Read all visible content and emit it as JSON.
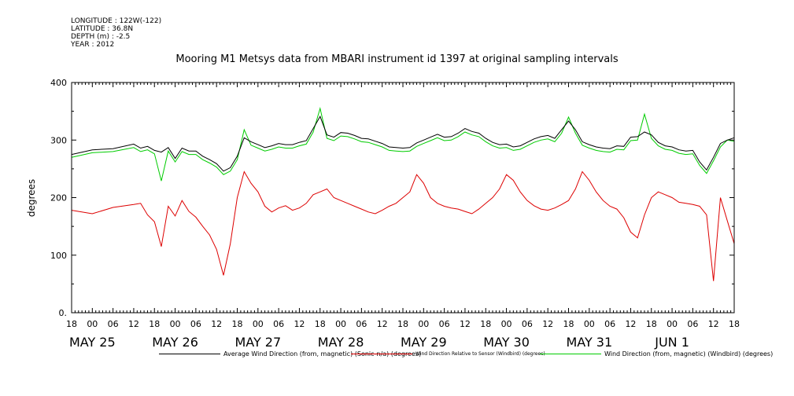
{
  "meta": {
    "longitude": "LONGITUDE : 122W(-122)",
    "latitude": "LATITUDE : 36.8N",
    "depth": "DEPTH (m) : -2.5",
    "year": "YEAR : 2012"
  },
  "chart_data": {
    "type": "line",
    "title": "Mooring M1 Metsys data from MBARI instrument id 1397 at original sampling intervals",
    "ylabel": "degrees",
    "xlabel": "",
    "xlim": [
      "2012-05-24 18:00",
      "2012-06-01 18:00"
    ],
    "ylim": [
      0,
      400
    ],
    "yticks": [
      "0.",
      "100",
      "200",
      "300",
      "400"
    ],
    "xtick_labels": [
      "18",
      "00",
      "06",
      "12",
      "18",
      "00",
      "06",
      "12",
      "18",
      "00",
      "06",
      "12",
      "18",
      "00",
      "06",
      "12",
      "18",
      "00",
      "06",
      "12",
      "18",
      "00",
      "06",
      "12",
      "18",
      "00",
      "06",
      "12",
      "18",
      "00",
      "06",
      "12",
      "18"
    ],
    "date_labels": [
      "MAY 25",
      "MAY 26",
      "MAY 27",
      "MAY 28",
      "MAY 29",
      "MAY 30",
      "MAY 31",
      "JUN  1"
    ],
    "grid": false,
    "legend_position": "bottom",
    "series": [
      {
        "name": "Average Wind Direction (from, magnetic) (Sonic-n/a) (degrees)",
        "color": "#000000",
        "x_hours": [
          0,
          6,
          12,
          18,
          20,
          22,
          24,
          26,
          28,
          30,
          32,
          34,
          36,
          38,
          40,
          42,
          44,
          46,
          48,
          50,
          52,
          54,
          56,
          58,
          60,
          62,
          64,
          66,
          68,
          70,
          72,
          74,
          76,
          78,
          80,
          82,
          84,
          86,
          88,
          90,
          92,
          94,
          96,
          98,
          100,
          102,
          104,
          106,
          108,
          110,
          112,
          114,
          116,
          118,
          120,
          122,
          124,
          126,
          128,
          130,
          132,
          134,
          136,
          138,
          140,
          142,
          144,
          146,
          148,
          150,
          152,
          154,
          156,
          158,
          160,
          162,
          164,
          166,
          168,
          170,
          172,
          174,
          176,
          178,
          180,
          182,
          184,
          186,
          188,
          190,
          192
        ],
        "values": [
          275,
          283,
          285,
          293,
          286,
          289,
          282,
          279,
          287,
          268,
          286,
          281,
          281,
          272,
          266,
          259,
          246,
          252,
          272,
          304,
          297,
          292,
          287,
          290,
          294,
          292,
          292,
          296,
          299,
          320,
          341,
          309,
          305,
          313,
          312,
          308,
          303,
          302,
          298,
          294,
          288,
          287,
          286,
          287,
          295,
          300,
          305,
          310,
          305,
          306,
          312,
          320,
          315,
          312,
          303,
          296,
          292,
          293,
          288,
          290,
          296,
          302,
          306,
          308,
          303,
          318,
          333,
          318,
          297,
          292,
          288,
          286,
          285,
          290,
          289,
          305,
          306,
          314,
          309,
          296,
          290,
          288,
          283,
          281,
          282,
          262,
          248,
          270,
          294,
          300,
          304
        ]
      },
      {
        "name": "Wind Direction Relative to Sensor (Windbird) (degrees)",
        "color": "#dd0000",
        "x_hours": [
          0,
          6,
          12,
          18,
          20,
          22,
          24,
          26,
          28,
          30,
          32,
          34,
          36,
          38,
          40,
          42,
          44,
          46,
          48,
          50,
          52,
          54,
          56,
          58,
          60,
          62,
          64,
          66,
          68,
          70,
          72,
          74,
          76,
          78,
          80,
          82,
          84,
          86,
          88,
          90,
          92,
          94,
          96,
          98,
          100,
          102,
          104,
          106,
          108,
          110,
          112,
          114,
          116,
          118,
          120,
          122,
          124,
          126,
          128,
          130,
          132,
          134,
          136,
          138,
          140,
          142,
          144,
          146,
          148,
          150,
          152,
          154,
          156,
          158,
          160,
          162,
          164,
          166,
          168,
          170,
          172,
          174,
          176,
          178,
          180,
          182,
          184,
          186,
          188,
          190,
          192
        ],
        "values": [
          178,
          172,
          183,
          188,
          190,
          170,
          158,
          115,
          185,
          168,
          195,
          176,
          166,
          150,
          135,
          110,
          65,
          120,
          200,
          245,
          225,
          210,
          185,
          175,
          182,
          186,
          178,
          182,
          190,
          205,
          210,
          215,
          200,
          195,
          190,
          185,
          180,
          175,
          172,
          178,
          185,
          190,
          200,
          210,
          240,
          225,
          200,
          190,
          185,
          182,
          180,
          176,
          172,
          180,
          190,
          200,
          215,
          240,
          230,
          210,
          195,
          186,
          180,
          178,
          182,
          188,
          195,
          215,
          245,
          230,
          210,
          195,
          185,
          180,
          165,
          140,
          130,
          170,
          200,
          210,
          205,
          200,
          192,
          190,
          188,
          185,
          170,
          55,
          200,
          160,
          120
        ]
      },
      {
        "name": "Wind Direction (from, magnetic) (Windbird) (degrees)",
        "color": "#00cc00",
        "x_hours": [
          0,
          6,
          12,
          18,
          20,
          22,
          24,
          26,
          28,
          30,
          32,
          34,
          36,
          38,
          40,
          42,
          44,
          46,
          48,
          50,
          52,
          54,
          56,
          58,
          60,
          62,
          64,
          66,
          68,
          70,
          72,
          74,
          76,
          78,
          80,
          82,
          84,
          86,
          88,
          90,
          92,
          94,
          96,
          98,
          100,
          102,
          104,
          106,
          108,
          110,
          112,
          114,
          116,
          118,
          120,
          122,
          124,
          126,
          128,
          130,
          132,
          134,
          136,
          138,
          140,
          142,
          144,
          146,
          148,
          150,
          152,
          154,
          156,
          158,
          160,
          162,
          164,
          166,
          168,
          170,
          172,
          174,
          176,
          178,
          180,
          182,
          184,
          186,
          188,
          190,
          192
        ],
        "values": [
          270,
          278,
          280,
          287,
          280,
          283,
          276,
          229,
          281,
          262,
          280,
          275,
          275,
          266,
          260,
          253,
          240,
          246,
          266,
          318,
          291,
          286,
          281,
          284,
          288,
          286,
          286,
          290,
          293,
          314,
          355,
          303,
          299,
          307,
          306,
          302,
          297,
          296,
          292,
          288,
          282,
          281,
          280,
          281,
          289,
          294,
          299,
          304,
          299,
          300,
          306,
          314,
          309,
          306,
          297,
          290,
          286,
          287,
          282,
          284,
          290,
          296,
          300,
          302,
          297,
          312,
          340,
          312,
          291,
          286,
          282,
          280,
          279,
          284,
          283,
          299,
          300,
          345,
          303,
          290,
          284,
          282,
          277,
          275,
          276,
          256,
          242,
          264,
          288,
          300,
          298
        ]
      }
    ]
  }
}
